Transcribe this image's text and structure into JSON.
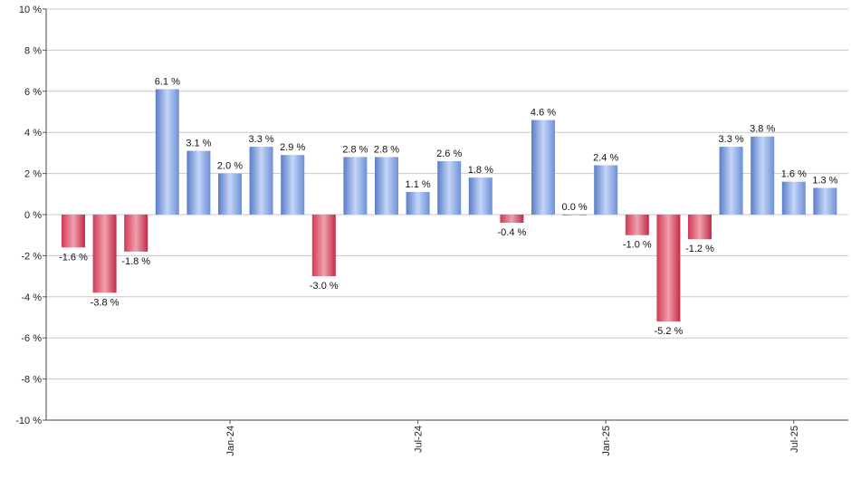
{
  "chart_data": {
    "type": "bar",
    "title": "",
    "xlabel": "",
    "ylabel": "",
    "ylim": [
      -10,
      10
    ],
    "y_ticks": [
      10,
      8,
      6,
      4,
      2,
      0,
      -2,
      -4,
      -6,
      -8,
      -10
    ],
    "y_tick_labels": [
      "10 %",
      "8 %",
      "6 %",
      "4 %",
      "2 %",
      "0 %",
      "-2 %",
      "-4 %",
      "-6 %",
      "-8 %",
      "-10 %"
    ],
    "grid": "horizontal",
    "positive_color": "#7b9fe0",
    "negative_color": "#cc2f4a",
    "categories": [
      "2023-08",
      "2023-09",
      "2023-10",
      "2023-11",
      "2023-12",
      "2024-01",
      "2024-02",
      "2024-03",
      "2024-04",
      "2024-05",
      "2024-06",
      "2024-07",
      "2024-08",
      "2024-09",
      "2024-10",
      "2024-11",
      "2024-12",
      "2025-01",
      "2025-02",
      "2025-03",
      "2025-04",
      "2025-05",
      "2025-06",
      "2025-07",
      "2025-08"
    ],
    "values": [
      -1.6,
      -3.8,
      -1.8,
      6.1,
      3.1,
      2.0,
      3.3,
      2.9,
      -3.0,
      2.8,
      2.8,
      1.1,
      2.6,
      1.8,
      -0.4,
      4.6,
      0.0,
      2.4,
      -1.0,
      -5.2,
      -1.2,
      3.3,
      3.8,
      1.6,
      1.3
    ],
    "value_labels": [
      "-1.6 %",
      "-3.8 %",
      "-1.8 %",
      "6.1 %",
      "3.1 %",
      "2.0 %",
      "3.3 %",
      "2.9 %",
      "-3.0 %",
      "2.8 %",
      "2.8 %",
      "1.1 %",
      "2.6 %",
      "1.8 %",
      "-0.4 %",
      "4.6 %",
      "0.0 %",
      "2.4 %",
      "-1.0 %",
      "-5.2 %",
      "-1.2 %",
      "3.3 %",
      "3.8 %",
      "1.6 %",
      "1.3 %"
    ],
    "x_tick_labels": [
      {
        "label": "Jan-24",
        "category": "2024-01"
      },
      {
        "label": "Jul-24",
        "category": "2024-07"
      },
      {
        "label": "Jan-25",
        "category": "2025-01"
      },
      {
        "label": "Jul-25",
        "category": "2025-07"
      }
    ]
  }
}
